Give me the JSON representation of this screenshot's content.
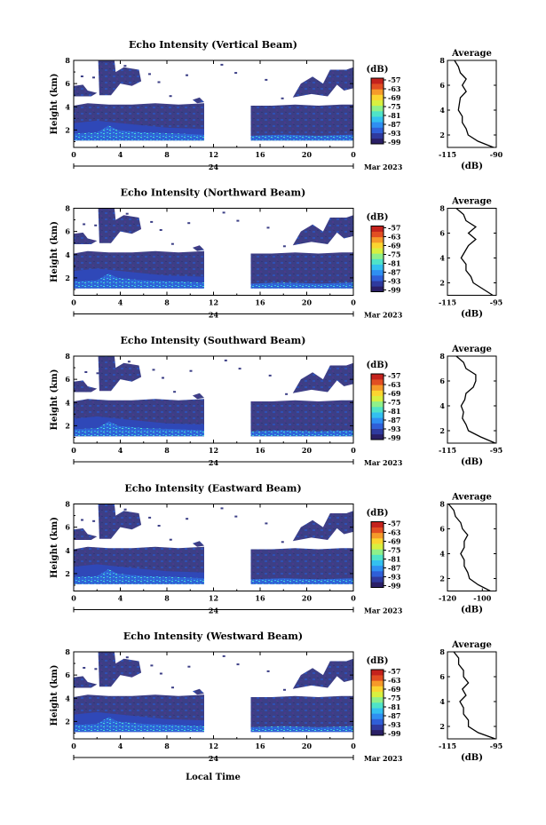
{
  "chart_data": {
    "type": "heatmap",
    "common": {
      "ylabel": "Height (km)",
      "xlabel": "Local Time",
      "date_label": "Mar 2023",
      "x_day_label": "24",
      "x_ticks": [
        "0",
        "4",
        "8",
        "12",
        "16",
        "20",
        "0"
      ],
      "y_ticks": [
        "2",
        "4",
        "6",
        "8"
      ],
      "xlim_hours": [
        0,
        24
      ],
      "ylim_km": [
        0.5,
        8
      ],
      "data_gap_hours": [
        11.2,
        15.2
      ],
      "colorbar_unit": "(dB)",
      "colorbar_ticks": [
        "-57",
        "-63",
        "-69",
        "-75",
        "-81",
        "-87",
        "-93",
        "-99"
      ],
      "colorbar_colors": [
        "#2a1f66",
        "#2f3a9e",
        "#2f5fd8",
        "#2f8ff2",
        "#33c0f0",
        "#4fe3c8",
        "#8ff08a",
        "#d8f040",
        "#fbd530",
        "#f69a2a",
        "#e24e22",
        "#c4221c"
      ],
      "average_title": "Average",
      "average_xlabel": "(dB)",
      "average_ylim_km": [
        1,
        8
      ],
      "average_y_ticks": [
        "2",
        "4",
        "6",
        "8"
      ]
    },
    "panels": [
      {
        "title": "Echo Intensity (Vertical Beam)",
        "average_x_ticks": [
          "-115",
          "-90"
        ],
        "average_xlim": [
          -115,
          -90
        ],
        "average_profile": {
          "height_km": [
            1.0,
            1.5,
            2.0,
            2.5,
            3.0,
            3.5,
            4.0,
            4.5,
            5.0,
            5.5,
            6.0,
            6.5,
            7.0,
            7.5,
            8.0
          ],
          "db": [
            -91,
            -100,
            -104,
            -106,
            -107,
            -108,
            -109,
            -109.5,
            -108,
            -106,
            -107,
            -106,
            -108,
            -110,
            -111
          ]
        }
      },
      {
        "title": "Echo Intensity (Northward Beam)",
        "average_x_ticks": [
          "-115",
          "-95"
        ],
        "average_xlim": [
          -115,
          -95
        ],
        "average_profile": {
          "height_km": [
            1.0,
            1.5,
            2.0,
            2.5,
            3.0,
            3.5,
            4.0,
            4.5,
            5.0,
            5.5,
            6.0,
            6.5,
            7.0,
            7.5,
            8.0
          ],
          "db": [
            -96,
            -101,
            -104,
            -106,
            -107,
            -108,
            -109,
            -108.5,
            -106,
            -104,
            -106,
            -104,
            -107,
            -109,
            -111
          ]
        }
      },
      {
        "title": "Echo Intensity (Southward Beam)",
        "average_x_ticks": [
          "-115",
          "-95"
        ],
        "average_xlim": [
          -115,
          -95
        ],
        "average_profile": {
          "height_km": [
            1.0,
            1.5,
            2.0,
            2.5,
            3.0,
            3.5,
            4.0,
            4.5,
            5.0,
            5.5,
            6.0,
            6.5,
            7.0,
            7.5,
            8.0
          ],
          "db": [
            -95,
            -102,
            -106,
            -108,
            -108.5,
            -109,
            -109,
            -108.5,
            -107,
            -105,
            -103,
            -104,
            -107,
            -109,
            -111
          ]
        }
      },
      {
        "title": "Echo Intensity (Eastward Beam)",
        "average_x_ticks": [
          "-120",
          "-100"
        ],
        "average_xlim": [
          -120,
          -92
        ],
        "average_profile": {
          "height_km": [
            1.0,
            1.5,
            2.0,
            2.5,
            3.0,
            3.5,
            4.0,
            4.5,
            5.0,
            5.5,
            6.0,
            6.5,
            7.0,
            7.5,
            8.0
          ],
          "db": [
            -95,
            -103,
            -107,
            -109,
            -110,
            -111,
            -112,
            -111,
            -110,
            -109,
            -111,
            -113,
            -115,
            -117,
            -119
          ]
        }
      },
      {
        "title": "Echo Intensity (Westward Beam)",
        "average_x_ticks": [
          "-115",
          "-95"
        ],
        "average_xlim": [
          -115,
          -95
        ],
        "average_profile": {
          "height_km": [
            1.0,
            1.5,
            2.0,
            2.5,
            3.0,
            3.5,
            4.0,
            4.5,
            5.0,
            5.5,
            6.0,
            6.5,
            7.0,
            7.5,
            8.0
          ],
          "db": [
            -95,
            -103,
            -106,
            -107,
            -108,
            -109,
            -109.5,
            -108,
            -108.5,
            -107,
            -108,
            -109,
            -110,
            -111,
            -112
          ]
        }
      }
    ]
  }
}
